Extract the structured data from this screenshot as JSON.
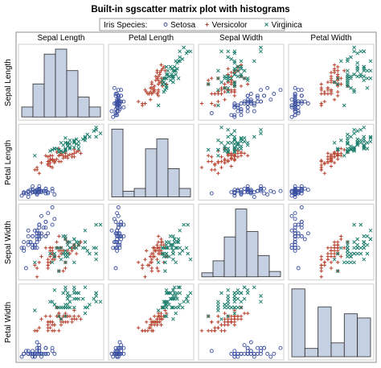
{
  "chart_data": {
    "type": "scatter",
    "title": "Built-in sgscatter matrix plot with histograms",
    "legend": {
      "title": "Iris Species:",
      "placement": "top",
      "entries": [
        {
          "name": "Setosa",
          "marker": "circle",
          "color": "#3a4fa0"
        },
        {
          "name": "Versicolor",
          "marker": "plus",
          "color": "#b6402c"
        },
        {
          "name": "Virginica",
          "marker": "x",
          "color": "#1f7f6e"
        }
      ]
    },
    "variables": [
      "Sepal Length",
      "Petal Length",
      "Sepal Width",
      "Petal Width"
    ],
    "grid": false,
    "diagonal": "histogram",
    "histogram_fill": "#c6d0e3",
    "frame_color": "#8c8c8c",
    "panel_border_color": "#cfcfcf",
    "histograms": [
      {
        "variable": "Sepal Length",
        "counts": [
          6,
          20,
          38,
          41,
          28,
          12,
          6
        ]
      },
      {
        "variable": "Petal Length",
        "counts": [
          48,
          4,
          6,
          34,
          41,
          20,
          6
        ]
      },
      {
        "variable": "Sepal Width",
        "counts": [
          3,
          12,
          30,
          51,
          34,
          16,
          4
        ]
      },
      {
        "variable": "Petal Width",
        "counts": [
          49,
          6,
          36,
          10,
          31,
          28
        ]
      }
    ],
    "series": [
      {
        "name": "Setosa",
        "sepal_length": [
          5.1,
          4.9,
          4.7,
          4.6,
          5.0,
          5.4,
          4.6,
          5.0,
          4.4,
          4.9,
          5.4,
          4.8,
          4.8,
          4.3,
          5.8,
          5.7,
          5.4,
          5.1,
          5.7,
          5.1,
          5.4,
          5.1,
          4.6,
          5.1,
          4.8,
          5.0,
          5.0,
          5.2,
          5.2,
          4.7,
          4.8,
          5.4,
          5.2,
          5.5,
          4.9,
          5.0,
          5.5,
          4.9,
          4.4,
          5.1,
          5.0,
          4.5,
          4.4,
          5.0,
          5.1,
          4.8,
          5.1,
          4.6,
          5.3,
          5.0
        ],
        "petal_length": [
          1.4,
          1.4,
          1.3,
          1.5,
          1.4,
          1.7,
          1.4,
          1.5,
          1.4,
          1.5,
          1.5,
          1.6,
          1.4,
          1.1,
          1.2,
          1.5,
          1.3,
          1.4,
          1.7,
          1.5,
          1.7,
          1.5,
          1.0,
          1.7,
          1.9,
          1.6,
          1.6,
          1.5,
          1.4,
          1.6,
          1.6,
          1.5,
          1.5,
          1.4,
          1.5,
          1.2,
          1.3,
          1.4,
          1.3,
          1.5,
          1.3,
          1.3,
          1.3,
          1.6,
          1.9,
          1.4,
          1.6,
          1.4,
          1.5,
          1.4
        ],
        "sepal_width": [
          3.5,
          3.0,
          3.2,
          3.1,
          3.6,
          3.9,
          3.4,
          3.4,
          2.9,
          3.1,
          3.7,
          3.4,
          3.0,
          3.0,
          4.0,
          4.4,
          3.9,
          3.5,
          3.8,
          3.8,
          3.4,
          3.7,
          3.6,
          3.3,
          3.4,
          3.0,
          3.4,
          3.5,
          3.4,
          3.2,
          3.1,
          3.4,
          4.1,
          4.2,
          3.1,
          3.2,
          3.5,
          3.6,
          3.0,
          3.4,
          3.5,
          2.3,
          3.2,
          3.5,
          3.8,
          3.0,
          3.8,
          3.2,
          3.7,
          3.3
        ],
        "petal_width": [
          0.2,
          0.2,
          0.2,
          0.2,
          0.2,
          0.4,
          0.3,
          0.2,
          0.2,
          0.1,
          0.2,
          0.2,
          0.1,
          0.1,
          0.2,
          0.4,
          0.4,
          0.3,
          0.3,
          0.3,
          0.2,
          0.4,
          0.2,
          0.5,
          0.2,
          0.2,
          0.4,
          0.2,
          0.2,
          0.2,
          0.2,
          0.4,
          0.1,
          0.2,
          0.2,
          0.2,
          0.2,
          0.1,
          0.2,
          0.2,
          0.3,
          0.3,
          0.2,
          0.6,
          0.4,
          0.3,
          0.2,
          0.2,
          0.2,
          0.2
        ]
      },
      {
        "name": "Versicolor",
        "sepal_length": [
          7.0,
          6.4,
          6.9,
          5.5,
          6.5,
          5.7,
          6.3,
          4.9,
          6.6,
          5.2,
          5.0,
          5.9,
          6.0,
          6.1,
          5.6,
          6.7,
          5.6,
          5.8,
          6.2,
          5.6,
          5.9,
          6.1,
          6.3,
          6.1,
          6.4,
          6.6,
          6.8,
          6.7,
          6.0,
          5.7,
          5.5,
          5.5,
          5.8,
          6.0,
          5.4,
          6.0,
          6.7,
          6.3,
          5.6,
          5.5,
          5.5,
          6.1,
          5.8,
          5.0,
          5.6,
          5.7,
          5.7,
          6.2,
          5.1,
          5.7
        ],
        "petal_length": [
          4.7,
          4.5,
          4.9,
          4.0,
          4.6,
          4.5,
          4.7,
          3.3,
          4.6,
          3.9,
          3.5,
          4.2,
          4.0,
          4.7,
          3.6,
          4.4,
          4.5,
          4.1,
          4.5,
          3.9,
          4.8,
          4.0,
          4.9,
          4.7,
          4.3,
          4.4,
          4.8,
          5.0,
          4.5,
          3.5,
          3.8,
          3.7,
          3.9,
          5.1,
          4.5,
          4.5,
          4.7,
          4.4,
          4.1,
          4.0,
          4.4,
          4.6,
          4.0,
          3.3,
          4.2,
          4.2,
          4.2,
          4.3,
          3.0,
          4.1
        ],
        "sepal_width": [
          3.2,
          3.2,
          3.1,
          2.3,
          2.8,
          2.8,
          3.3,
          2.4,
          2.9,
          2.7,
          2.0,
          3.0,
          2.2,
          2.9,
          2.9,
          3.1,
          3.0,
          2.7,
          2.2,
          2.5,
          3.2,
          2.8,
          2.5,
          2.8,
          2.9,
          3.0,
          2.8,
          3.0,
          2.9,
          2.6,
          2.4,
          2.4,
          2.7,
          2.7,
          3.0,
          3.4,
          3.1,
          2.3,
          3.0,
          2.5,
          2.6,
          3.0,
          2.6,
          2.3,
          2.7,
          3.0,
          2.9,
          2.9,
          2.5,
          2.8
        ],
        "petal_width": [
          1.4,
          1.5,
          1.5,
          1.3,
          1.5,
          1.3,
          1.6,
          1.0,
          1.3,
          1.4,
          1.0,
          1.5,
          1.0,
          1.4,
          1.3,
          1.4,
          1.5,
          1.0,
          1.5,
          1.1,
          1.8,
          1.3,
          1.5,
          1.2,
          1.3,
          1.4,
          1.4,
          1.7,
          1.5,
          1.0,
          1.1,
          1.0,
          1.2,
          1.6,
          1.5,
          1.6,
          1.5,
          1.3,
          1.3,
          1.3,
          1.2,
          1.4,
          1.2,
          1.0,
          1.3,
          1.2,
          1.3,
          1.3,
          1.1,
          1.3
        ]
      },
      {
        "name": "Virginica",
        "sepal_length": [
          6.3,
          5.8,
          7.1,
          6.3,
          6.5,
          7.6,
          4.9,
          7.3,
          6.7,
          7.2,
          6.5,
          6.4,
          6.8,
          5.7,
          5.8,
          6.4,
          6.5,
          7.7,
          7.7,
          6.0,
          6.9,
          5.6,
          7.7,
          6.3,
          6.7,
          7.2,
          6.2,
          6.1,
          6.4,
          7.2,
          7.4,
          7.9,
          6.4,
          6.3,
          6.1,
          7.7,
          6.3,
          6.4,
          6.0,
          6.9,
          6.7,
          6.9,
          5.8,
          6.8,
          6.7,
          6.7,
          6.3,
          6.5,
          6.2,
          5.9
        ],
        "petal_length": [
          6.0,
          5.1,
          5.9,
          5.6,
          5.8,
          6.6,
          4.5,
          6.3,
          5.8,
          6.1,
          5.1,
          5.3,
          5.5,
          5.0,
          5.1,
          5.3,
          5.5,
          6.7,
          6.9,
          5.0,
          5.7,
          4.9,
          6.7,
          4.9,
          5.7,
          6.0,
          4.8,
          4.9,
          5.6,
          5.8,
          6.1,
          6.4,
          5.6,
          5.1,
          5.6,
          6.1,
          5.6,
          5.5,
          4.8,
          5.4,
          5.6,
          5.1,
          5.1,
          5.9,
          5.7,
          5.2,
          5.0,
          5.2,
          5.4,
          5.1
        ],
        "sepal_width": [
          3.3,
          2.7,
          3.0,
          2.9,
          3.0,
          3.0,
          2.5,
          2.9,
          2.5,
          3.6,
          3.2,
          2.7,
          3.0,
          2.5,
          2.8,
          3.2,
          3.0,
          3.8,
          2.6,
          2.2,
          3.2,
          2.8,
          2.8,
          2.7,
          3.3,
          3.2,
          2.8,
          3.0,
          2.8,
          3.0,
          2.8,
          3.8,
          2.8,
          2.8,
          2.6,
          3.0,
          3.4,
          3.1,
          3.0,
          3.1,
          3.1,
          3.1,
          2.7,
          3.2,
          3.3,
          3.0,
          2.5,
          3.0,
          3.4,
          3.0
        ],
        "petal_width": [
          2.5,
          1.9,
          2.1,
          1.8,
          2.2,
          2.1,
          1.7,
          1.8,
          1.8,
          2.5,
          2.0,
          1.9,
          2.1,
          2.0,
          2.4,
          2.3,
          1.8,
          2.2,
          2.3,
          1.5,
          2.3,
          2.0,
          2.0,
          1.8,
          2.1,
          1.8,
          1.8,
          1.8,
          2.1,
          1.6,
          1.9,
          2.0,
          2.2,
          1.5,
          1.4,
          2.3,
          2.4,
          1.8,
          1.8,
          2.1,
          2.4,
          2.3,
          1.9,
          2.3,
          2.5,
          2.3,
          1.9,
          2.0,
          2.3,
          1.8
        ]
      }
    ]
  }
}
